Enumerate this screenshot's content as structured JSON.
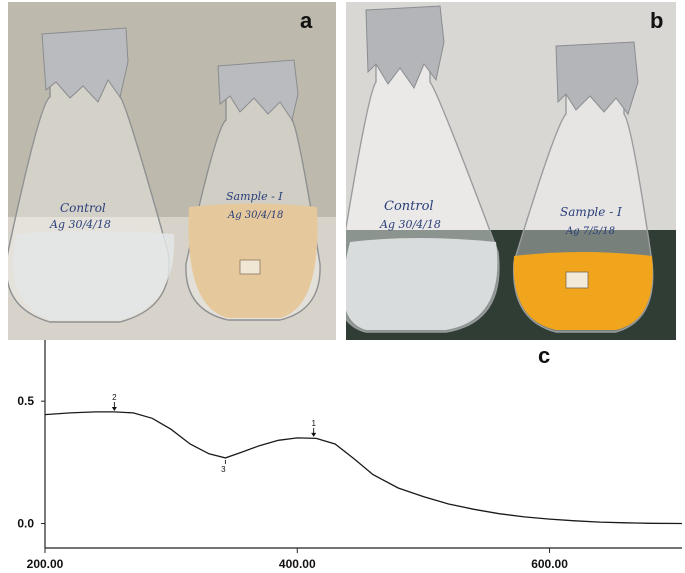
{
  "panels": {
    "a": {
      "label": "a",
      "left_flask_text": [
        "Control",
        "Ag 30/4/18"
      ],
      "right_flask_text": [
        "Sample - I",
        "Ag 30/4/18"
      ],
      "colors": {
        "background": "#bdb9ad",
        "table": "#d7d3ca",
        "control_liquid": "#e3e6e6",
        "sample_liquid": "#e5c89c",
        "foil": "#b9bbbf"
      }
    },
    "b": {
      "label": "b",
      "left_flask_text": [
        "Control",
        "Ag 30/4/18"
      ],
      "right_flask_text": [
        "Sample - I",
        "Ag 7/5/18"
      ],
      "colors": {
        "background": "#d9d7d4",
        "table": "#2f3d35",
        "control_liquid": "#d8dcdc",
        "sample_liquid": "#f1a51c",
        "foil": "#b3b5b9"
      }
    },
    "c": {
      "label": "c"
    }
  },
  "chart_data": {
    "type": "line",
    "title": "",
    "xlabel": "",
    "ylabel": "",
    "xlim": [
      200,
      705
    ],
    "ylim": [
      -0.1,
      0.75
    ],
    "x_ticks": [
      200,
      400,
      600
    ],
    "x_tick_labels": [
      "200.00",
      "400.00",
      "600.00"
    ],
    "y_ticks": [
      0.5,
      0.0
    ],
    "y_tick_labels": [
      "0.5",
      "0.0"
    ],
    "grid": false,
    "series": [
      {
        "x": [
          200,
          220,
          240,
          255,
          270,
          285,
          300,
          315,
          330,
          343,
          355,
          370,
          385,
          400,
          415,
          430,
          445,
          460,
          480,
          500,
          520,
          540,
          560,
          580,
          600,
          620,
          640,
          660,
          680,
          705
        ],
        "y": [
          0.445,
          0.452,
          0.456,
          0.456,
          0.452,
          0.43,
          0.385,
          0.325,
          0.285,
          0.268,
          0.29,
          0.318,
          0.34,
          0.35,
          0.348,
          0.325,
          0.265,
          0.2,
          0.145,
          0.11,
          0.08,
          0.058,
          0.04,
          0.027,
          0.018,
          0.011,
          0.006,
          0.003,
          0.001,
          0.0
        ]
      }
    ],
    "annotations": [
      {
        "text": "2",
        "x": 255,
        "y": 0.456
      },
      {
        "text": "3",
        "x": 343,
        "y": 0.268
      },
      {
        "text": "1",
        "x": 413,
        "y": 0.35
      }
    ]
  }
}
